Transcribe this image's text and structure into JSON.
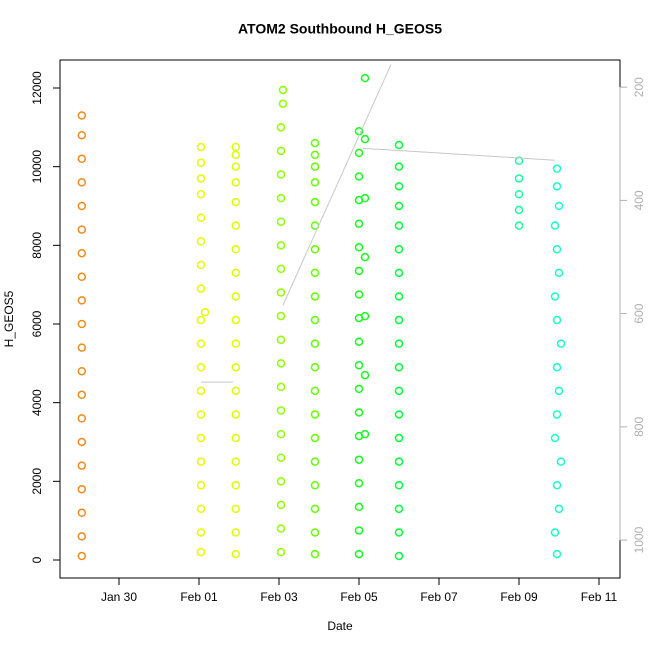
{
  "chart_data": {
    "type": "scatter",
    "title": "ATOM2 Southbound H_GEOS5",
    "x_label": "Date",
    "y_label": "H_GEOS5",
    "xlim": [
      -1.475,
      12.525
    ],
    "xticks": [
      {
        "value": 0,
        "label": "Jan 30"
      },
      {
        "value": 2,
        "label": "Feb 01"
      },
      {
        "value": 4,
        "label": "Feb 03"
      },
      {
        "value": 6,
        "label": "Feb 05"
      },
      {
        "value": 8,
        "label": "Feb 07"
      },
      {
        "value": 10,
        "label": "Feb 09"
      },
      {
        "value": 12,
        "label": "Feb 11"
      }
    ],
    "ylim": [
      -458,
      12712
    ],
    "yticks": [
      0,
      2000,
      4000,
      6000,
      8000,
      10000,
      12000
    ],
    "y2lim": [
      1067,
      152
    ],
    "y2ticks": [
      200,
      400,
      600,
      800,
      1000
    ],
    "series": [
      {
        "color": "#f08a1c",
        "x": [
          -0.93,
          -0.93,
          -0.93,
          -0.93,
          -0.93,
          -0.93,
          -0.93,
          -0.93,
          -0.93,
          -0.93,
          -0.93,
          -0.93,
          -0.93,
          -0.93,
          -0.93,
          -0.93,
          -0.93,
          -0.93,
          -0.93,
          -0.93
        ],
        "values": [
          100,
          600,
          1200,
          1800,
          2400,
          3000,
          3600,
          4200,
          4800,
          5400,
          6000,
          6600,
          7200,
          7800,
          8400,
          9000,
          9600,
          10200,
          10800,
          11300
        ]
      },
      {
        "color": "#e6ff00",
        "x": [
          2.05,
          2.05,
          2.05,
          2.05,
          2.05,
          2.05,
          2.05,
          2.05,
          2.05,
          2.05,
          2.05,
          2.15,
          2.05,
          2.05,
          2.05,
          2.05,
          2.05,
          2.05,
          2.05,
          2.05
        ],
        "values": [
          200,
          700,
          1300,
          1900,
          2500,
          3100,
          3700,
          4300,
          4900,
          5500,
          6100,
          6300,
          6900,
          7500,
          8100,
          8700,
          9300,
          9700,
          10100,
          10500
        ]
      },
      {
        "color": "#dcff00",
        "x": [
          2.92,
          2.92,
          2.92,
          2.92,
          2.92,
          2.92,
          2.92,
          2.92,
          2.92,
          2.92,
          2.92,
          2.92,
          2.92,
          2.92,
          2.92,
          2.92,
          2.92,
          2.92,
          2.92,
          2.92
        ],
        "values": [
          150,
          700,
          1300,
          1900,
          2500,
          3100,
          3700,
          4300,
          4900,
          5500,
          6100,
          6700,
          7300,
          7900,
          8500,
          9100,
          9600,
          10000,
          10300,
          10500
        ]
      },
      {
        "color": "#8fff00",
        "x": [
          4.05,
          4.05,
          4.05,
          4.05,
          4.05,
          4.05,
          4.05,
          4.05,
          4.05,
          4.05,
          4.05,
          4.05,
          4.05,
          4.05,
          4.05,
          4.05,
          4.05,
          4.05,
          4.05,
          4.1,
          4.1
        ],
        "values": [
          200,
          800,
          1400,
          2000,
          2600,
          3200,
          3800,
          4400,
          5000,
          5600,
          6200,
          6800,
          7400,
          8000,
          8600,
          9200,
          9800,
          10400,
          11000,
          11600,
          11950
        ]
      },
      {
        "color": "#66ff00",
        "x": [
          4.9,
          4.9,
          4.9,
          4.9,
          4.9,
          4.9,
          4.9,
          4.9,
          4.9,
          4.9,
          4.9,
          4.9,
          4.9,
          4.9,
          4.9,
          4.9,
          4.9,
          4.9,
          4.9,
          4.9
        ],
        "values": [
          150,
          700,
          1300,
          1900,
          2500,
          3100,
          3700,
          4300,
          4900,
          5500,
          6100,
          6700,
          7300,
          7900,
          8500,
          9100,
          9600,
          10000,
          10300,
          10600
        ]
      },
      {
        "color": "#14ff1e",
        "x": [
          6.0,
          6.0,
          6.0,
          6.0,
          6.0,
          6.0,
          6.0,
          6.0,
          6.0,
          6.0,
          6.0,
          6.0,
          6.0,
          6.0,
          6.0,
          6.0,
          6.0,
          6.0,
          6.0,
          6.15,
          6.15,
          6.15,
          6.15,
          6.15,
          6.15,
          6.15
        ],
        "values": [
          150,
          750,
          1350,
          1950,
          2550,
          3150,
          3750,
          4350,
          4950,
          5550,
          6150,
          6750,
          7350,
          7950,
          8550,
          9150,
          9750,
          10350,
          10900,
          3200,
          4700,
          6200,
          7700,
          9200,
          10700,
          12250
        ]
      },
      {
        "color": "#00ff3c",
        "x": [
          7.0,
          7.0,
          7.0,
          7.0,
          7.0,
          7.0,
          7.0,
          7.0,
          7.0,
          7.0,
          7.0,
          7.0,
          7.0,
          7.0,
          7.0,
          7.0,
          7.0,
          7.0,
          7.0
        ],
        "values": [
          100,
          700,
          1300,
          1900,
          2500,
          3100,
          3700,
          4300,
          4900,
          5500,
          6100,
          6700,
          7300,
          7900,
          8500,
          9000,
          9500,
          10000,
          10550
        ]
      },
      {
        "color": "#1affa0",
        "x": [
          10.0,
          10.0,
          10.0,
          10.0,
          10.0
        ],
        "values": [
          8500,
          8900,
          9300,
          9700,
          10150
        ]
      },
      {
        "color": "#1affc8",
        "x": [
          10.95,
          10.9,
          11.0,
          10.95,
          11.05,
          10.9,
          10.95,
          11.0,
          10.95,
          11.05,
          10.95,
          10.9,
          11.0,
          10.95,
          10.9,
          11.0,
          10.95,
          10.95
        ],
        "values": [
          150,
          700,
          1300,
          1900,
          2500,
          3100,
          3700,
          4300,
          4900,
          5500,
          6100,
          6700,
          7300,
          7900,
          8500,
          9000,
          9500,
          9950
        ]
      },
      {
        "type": "line",
        "axis": "y2",
        "color": "#c8c8c8",
        "x": [
          2.05,
          2.85,
          2.9,
          4.1,
          6.8,
          6.9,
          6.1,
          10.0,
          10.9
        ],
        "values": [
          721,
          721,
          null,
          585,
          160,
          null,
          308,
          325,
          329
        ]
      }
    ]
  }
}
